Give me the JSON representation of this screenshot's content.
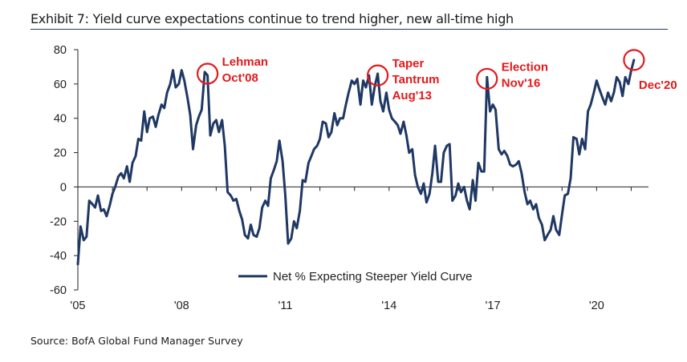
{
  "title": "Exhibit 7: Yield curve expectations continue to trend higher, new all-time high",
  "source": "Source: BofA Global Fund Manager Survey",
  "chart_data": {
    "type": "line",
    "xlabel": "",
    "ylabel": "",
    "ylim": [
      -60,
      80
    ],
    "xlim": [
      2005.0,
      2022.0
    ],
    "y_ticks": [
      -60,
      -40,
      -20,
      0,
      20,
      40,
      60,
      80
    ],
    "y_tick_labels": [
      "-60",
      "-40",
      "-20",
      "0",
      "20",
      "40",
      "60",
      "80"
    ],
    "x_ticks": [
      2005,
      2008,
      2011,
      2014,
      2017,
      2020
    ],
    "x_tick_labels": [
      "'05",
      "'08",
      "'11",
      "'14",
      "'17",
      "'20"
    ],
    "grid": false,
    "legend_position": "bottom-center",
    "series": [
      {
        "name": "Net % Expecting Steeper Yield Curve",
        "color": "#1f3864",
        "points": [
          [
            2005.0,
            -45
          ],
          [
            2005.08,
            -23
          ],
          [
            2005.17,
            -31
          ],
          [
            2005.25,
            -29
          ],
          [
            2005.33,
            -8
          ],
          [
            2005.42,
            -10
          ],
          [
            2005.5,
            -12
          ],
          [
            2005.58,
            -5
          ],
          [
            2005.67,
            -14
          ],
          [
            2005.75,
            -13
          ],
          [
            2005.83,
            -17
          ],
          [
            2005.92,
            -11
          ],
          [
            2006.0,
            -4
          ],
          [
            2006.08,
            0
          ],
          [
            2006.17,
            6
          ],
          [
            2006.25,
            8
          ],
          [
            2006.33,
            5
          ],
          [
            2006.42,
            12
          ],
          [
            2006.5,
            3
          ],
          [
            2006.58,
            14
          ],
          [
            2006.67,
            18
          ],
          [
            2006.75,
            28
          ],
          [
            2006.83,
            27
          ],
          [
            2006.92,
            44
          ],
          [
            2007.0,
            32
          ],
          [
            2007.08,
            40
          ],
          [
            2007.17,
            41
          ],
          [
            2007.25,
            35
          ],
          [
            2007.33,
            42
          ],
          [
            2007.42,
            48
          ],
          [
            2007.5,
            46
          ],
          [
            2007.58,
            55
          ],
          [
            2007.67,
            60
          ],
          [
            2007.75,
            68
          ],
          [
            2007.83,
            58
          ],
          [
            2007.92,
            60
          ],
          [
            2008.0,
            68
          ],
          [
            2008.08,
            62
          ],
          [
            2008.17,
            52
          ],
          [
            2008.25,
            42
          ],
          [
            2008.33,
            22
          ],
          [
            2008.42,
            36
          ],
          [
            2008.5,
            41
          ],
          [
            2008.58,
            45
          ],
          [
            2008.67,
            67
          ],
          [
            2008.75,
            65
          ],
          [
            2008.83,
            30
          ],
          [
            2008.92,
            37
          ],
          [
            2009.0,
            39
          ],
          [
            2009.08,
            32
          ],
          [
            2009.17,
            39
          ],
          [
            2009.25,
            24
          ],
          [
            2009.33,
            -3
          ],
          [
            2009.42,
            -5
          ],
          [
            2009.5,
            -8
          ],
          [
            2009.58,
            -7
          ],
          [
            2009.67,
            -14
          ],
          [
            2009.75,
            -19
          ],
          [
            2009.83,
            -28
          ],
          [
            2009.92,
            -30
          ],
          [
            2010.0,
            -22
          ],
          [
            2010.08,
            -28
          ],
          [
            2010.17,
            -29
          ],
          [
            2010.25,
            -24
          ],
          [
            2010.33,
            -12
          ],
          [
            2010.42,
            -8
          ],
          [
            2010.5,
            -11
          ],
          [
            2010.58,
            5
          ],
          [
            2010.67,
            10
          ],
          [
            2010.75,
            15
          ],
          [
            2010.83,
            27
          ],
          [
            2010.92,
            15
          ],
          [
            2011.0,
            -5
          ],
          [
            2011.08,
            -33
          ],
          [
            2011.17,
            -30
          ],
          [
            2011.25,
            -20
          ],
          [
            2011.33,
            -24
          ],
          [
            2011.42,
            -14
          ],
          [
            2011.5,
            4
          ],
          [
            2011.58,
            3
          ],
          [
            2011.67,
            14
          ],
          [
            2011.75,
            18
          ],
          [
            2011.83,
            22
          ],
          [
            2011.92,
            24
          ],
          [
            2012.0,
            28
          ],
          [
            2012.08,
            38
          ],
          [
            2012.17,
            37
          ],
          [
            2012.25,
            29
          ],
          [
            2012.33,
            32
          ],
          [
            2012.42,
            43
          ],
          [
            2012.5,
            36
          ],
          [
            2012.58,
            40
          ],
          [
            2012.67,
            40
          ],
          [
            2012.75,
            48
          ],
          [
            2012.83,
            55
          ],
          [
            2012.92,
            62
          ],
          [
            2013.0,
            60
          ],
          [
            2013.08,
            63
          ],
          [
            2013.17,
            48
          ],
          [
            2013.25,
            62
          ],
          [
            2013.33,
            58
          ],
          [
            2013.42,
            65
          ],
          [
            2013.5,
            48
          ],
          [
            2013.58,
            58
          ],
          [
            2013.67,
            66
          ],
          [
            2013.75,
            50
          ],
          [
            2013.83,
            44
          ],
          [
            2013.92,
            55
          ],
          [
            2014.0,
            45
          ],
          [
            2014.08,
            40
          ],
          [
            2014.17,
            38
          ],
          [
            2014.25,
            36
          ],
          [
            2014.33,
            31
          ],
          [
            2014.42,
            38
          ],
          [
            2014.5,
            30
          ],
          [
            2014.58,
            20
          ],
          [
            2014.67,
            22
          ],
          [
            2014.75,
            7
          ],
          [
            2014.83,
            0
          ],
          [
            2014.92,
            -4
          ],
          [
            2015.0,
            2
          ],
          [
            2015.08,
            -9
          ],
          [
            2015.17,
            -4
          ],
          [
            2015.25,
            8
          ],
          [
            2015.33,
            24
          ],
          [
            2015.42,
            3
          ],
          [
            2015.5,
            3
          ],
          [
            2015.58,
            20
          ],
          [
            2015.67,
            24
          ],
          [
            2015.75,
            25
          ],
          [
            2015.83,
            -8
          ],
          [
            2015.92,
            -5
          ],
          [
            2016.0,
            2
          ],
          [
            2016.08,
            -3
          ],
          [
            2016.17,
            0
          ],
          [
            2016.25,
            -8
          ],
          [
            2016.33,
            -13
          ],
          [
            2016.42,
            4
          ],
          [
            2016.5,
            -8
          ],
          [
            2016.58,
            14
          ],
          [
            2016.67,
            9
          ],
          [
            2016.75,
            9
          ],
          [
            2016.83,
            64
          ],
          [
            2016.92,
            44
          ],
          [
            2017.0,
            48
          ],
          [
            2017.08,
            45
          ],
          [
            2017.17,
            22
          ],
          [
            2017.25,
            19
          ],
          [
            2017.33,
            21
          ],
          [
            2017.42,
            18
          ],
          [
            2017.5,
            13
          ],
          [
            2017.58,
            12
          ],
          [
            2017.67,
            13
          ],
          [
            2017.75,
            15
          ],
          [
            2017.83,
            8
          ],
          [
            2017.92,
            -3
          ],
          [
            2018.0,
            -10
          ],
          [
            2018.08,
            -8
          ],
          [
            2018.17,
            -13
          ],
          [
            2018.25,
            -10
          ],
          [
            2018.33,
            -18
          ],
          [
            2018.42,
            -22
          ],
          [
            2018.5,
            -31
          ],
          [
            2018.58,
            -28
          ],
          [
            2018.67,
            -25
          ],
          [
            2018.75,
            -17
          ],
          [
            2018.83,
            -25
          ],
          [
            2018.92,
            -28
          ],
          [
            2019.0,
            -16
          ],
          [
            2019.08,
            -5
          ],
          [
            2019.17,
            -4
          ],
          [
            2019.25,
            5
          ],
          [
            2019.33,
            29
          ],
          [
            2019.42,
            28
          ],
          [
            2019.5,
            19
          ],
          [
            2019.58,
            28
          ],
          [
            2019.67,
            22
          ],
          [
            2019.75,
            44
          ],
          [
            2019.83,
            48
          ],
          [
            2019.92,
            55
          ],
          [
            2020.0,
            62
          ],
          [
            2020.08,
            57
          ],
          [
            2020.17,
            52
          ],
          [
            2020.25,
            48
          ],
          [
            2020.33,
            55
          ],
          [
            2020.42,
            50
          ],
          [
            2020.5,
            55
          ],
          [
            2020.58,
            64
          ],
          [
            2020.67,
            61
          ],
          [
            2020.75,
            53
          ],
          [
            2020.83,
            64
          ],
          [
            2020.92,
            60
          ],
          [
            2021.0,
            68
          ],
          [
            2021.08,
            74
          ]
        ]
      }
    ],
    "annotations": [
      {
        "lines": [
          "Lehman",
          "Oct'08"
        ],
        "x": 2008.75,
        "y": 66
      },
      {
        "lines": [
          "Taper",
          "Tantrum",
          "Aug'13"
        ],
        "x": 2013.67,
        "y": 65
      },
      {
        "lines": [
          "Election",
          "Nov'16"
        ],
        "x": 2016.83,
        "y": 63
      },
      {
        "lines": [
          "Dec'20"
        ],
        "x": 2021.08,
        "y": 74
      }
    ]
  }
}
